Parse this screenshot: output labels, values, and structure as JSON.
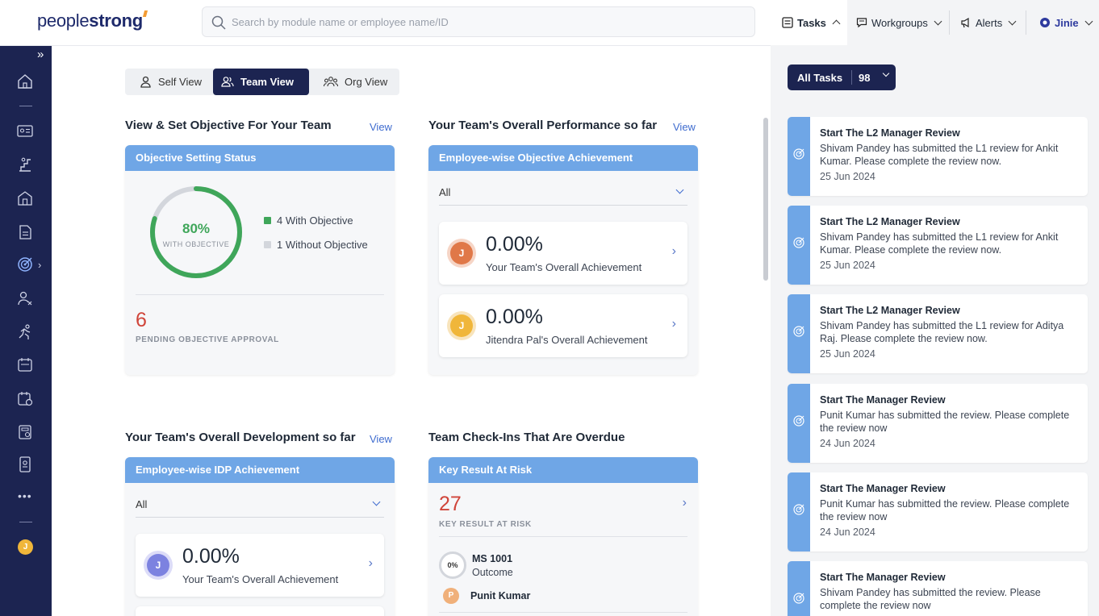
{
  "brand": {
    "logo_light": "people",
    "logo_bold": "strong"
  },
  "search": {
    "placeholder": "Search by module name or employee name/ID"
  },
  "topnav": {
    "tasks": "Tasks",
    "workgroups": "Workgroups",
    "alerts": "Alerts",
    "jinie": "Jinie"
  },
  "sidebar": {
    "expand": "»",
    "avatar": "J",
    "more": "•••"
  },
  "view_tabs": {
    "self": "Self View",
    "team": "Team View",
    "org": "Org View",
    "active": "Team View"
  },
  "objective": {
    "title": "View & Set Objective For Your Team",
    "view": "View",
    "card_head": "Objective Setting Status",
    "percent": "80%",
    "percent_label": "WITH OBJECTIVE",
    "percent_value": 80,
    "with": "4 With Objective",
    "without": "1 Without Objective",
    "pending_count": "6",
    "pending_label": "PENDING OBJECTIVE APPROVAL",
    "colors": {
      "with": "#3fa65a",
      "without": "#d3d6dc"
    }
  },
  "performance": {
    "title": "Your Team's Overall Performance so far",
    "view": "View",
    "card_head": "Employee-wise Objective Achievement",
    "filter": "All",
    "items": [
      {
        "avatar": "J",
        "color": "#e07848",
        "pct": "0.00%",
        "label": "Your Team's Overall Achievement"
      },
      {
        "avatar": "J",
        "color": "#f0b63a",
        "pct": "0.00%",
        "label": "Jitendra Pal's Overall Achievement"
      }
    ]
  },
  "development": {
    "title": "Your Team's Overall Development so far",
    "view": "View",
    "card_head": "Employee-wise IDP Achievement",
    "filter": "All",
    "items": [
      {
        "avatar": "J",
        "color": "#7c82e0",
        "pct": "0.00%",
        "label": "Your Team's Overall Achievement"
      }
    ]
  },
  "checkins": {
    "title": "Team Check-Ins That Are Overdue",
    "card_head": "Key Result At Risk",
    "count": "27",
    "count_label": "KEY RESULT AT RISK",
    "item": {
      "ring": "0%",
      "code": "MS 1001",
      "type": "Outcome",
      "avatar": "P",
      "owner": "Punit Kumar"
    }
  },
  "tasks": {
    "all_label": "All Tasks",
    "count": "98",
    "items": [
      {
        "title": "Start The L2 Manager Review",
        "desc": "Shivam Pandey has submitted the L1 review for Ankit Kumar. Please complete the review now.",
        "date": "25 Jun 2024"
      },
      {
        "title": "Start The L2 Manager Review",
        "desc": "Shivam Pandey has submitted the L1 review for Ankit Kumar. Please complete the review now.",
        "date": "25 Jun 2024"
      },
      {
        "title": "Start The L2 Manager Review",
        "desc": "Shivam Pandey has submitted the L1 review for Aditya Raj. Please complete the review now.",
        "date": "25 Jun 2024"
      },
      {
        "title": "Start The Manager Review",
        "desc": "Punit Kumar has submitted the review. Please complete the review now",
        "date": "24 Jun 2024"
      },
      {
        "title": "Start The Manager Review",
        "desc": "Punit Kumar has submitted the review. Please complete the review now",
        "date": "24 Jun 2024"
      },
      {
        "title": "Start The Manager Review",
        "desc": "Shivam Pandey has submitted the review. Please complete the review now",
        "date": ""
      }
    ]
  }
}
